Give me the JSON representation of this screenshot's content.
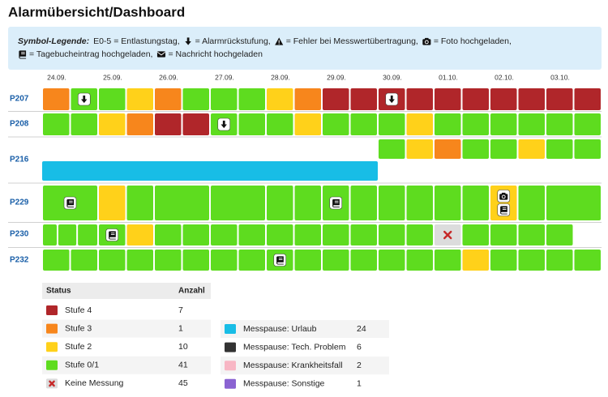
{
  "header": {
    "title": "Alarmübersicht/Dashboard"
  },
  "symbol_legend": {
    "heading": "Symbol-Legende:",
    "items": [
      {
        "text": "E0-5 = Entlastungstag,"
      },
      {
        "text": "= Alarmrückstufung,"
      },
      {
        "text": "= Fehler bei Messwertübertragung,"
      },
      {
        "text": "= Foto hochgeladen,"
      },
      {
        "text": "= Tagebucheintrag hochgeladen,"
      },
      {
        "text": "= Nachricht hochgeladen"
      }
    ]
  },
  "dates": [
    "24.09.",
    "25.09.",
    "26.09.",
    "27.09.",
    "28.09.",
    "29.09.",
    "30.09.",
    "01.10.",
    "02.10.",
    "03.10."
  ],
  "rows": [
    {
      "label": "P207",
      "lanes": [
        [
          "Stufe 3",
          {
            "status": "Stufe 0/1",
            "icons": [
              "Alarmrückstufung"
            ]
          },
          "Stufe 0/1",
          "Stufe 2",
          "Stufe 3",
          "Stufe 0/1",
          "Stufe 0/1",
          "Stufe 0/1",
          "Stufe 2",
          "Stufe 3",
          "Stufe 4",
          "Stufe 4",
          {
            "status": "Stufe 4",
            "icons": [
              "Alarmrückstufung"
            ]
          },
          "Stufe 4",
          "Stufe 4",
          "Stufe 4",
          "Stufe 4",
          "Stufe 4",
          "Stufe 4",
          "Stufe 4"
        ]
      ]
    },
    {
      "label": "P208",
      "lanes": [
        [
          "Stufe 0/1",
          "Stufe 0/1",
          "Stufe 2",
          "Stufe 3",
          "Stufe 4",
          "Stufe 4",
          {
            "status": "Stufe 0/1",
            "icons": [
              "Alarmrückstufung"
            ]
          },
          "Stufe 0/1",
          "Stufe 0/1",
          "Stufe 2",
          "Stufe 0/1",
          "Stufe 0/1",
          "Stufe 0/1",
          "Stufe 2",
          "Stufe 0/1",
          "Stufe 0/1",
          "Stufe 0/1",
          "Stufe 0/1",
          "Stufe 0/1",
          "Stufe 0/1"
        ]
      ]
    },
    {
      "label": "P216",
      "lanes": [
        [
          null,
          null,
          null,
          null,
          null,
          null,
          null,
          null,
          null,
          null,
          null,
          null,
          "Stufe 0/1",
          "Stufe 2",
          "Stufe 3",
          "Stufe 0/1",
          "Stufe 0/1",
          "Stufe 2",
          "Stufe 0/1",
          "Stufe 0/1"
        ],
        [
          "Messpause: Urlaub"
        ]
      ]
    },
    {
      "label": "P229",
      "lanes": [
        [
          {
            "status": "Stufe 0/1",
            "icons": [
              "Tagebucheintrag hochgeladen"
            ]
          },
          "Stufe 2",
          "Stufe 0/1",
          "Stufe 0/1",
          "Stufe 0/1",
          "Stufe 0/1",
          "Stufe 0/1",
          {
            "status": "Stufe 0/1",
            "icons": [
              "Tagebucheintrag hochgeladen"
            ]
          },
          "Stufe 0/1",
          "Stufe 0/1",
          "Stufe 0/1",
          "Stufe 0/1",
          "Stufe 0/1",
          {
            "status": "Stufe 2",
            "icons": [
              "Foto hochgeladen",
              "Tagebucheintrag hochgeladen"
            ]
          },
          "Stufe 0/1",
          "Stufe 0/1"
        ]
      ]
    },
    {
      "label": "P230",
      "lanes": [
        [
          "Stufe 0/1",
          "Stufe 0/1",
          "Stufe 0/1",
          {
            "status": "Stufe 0/1",
            "icons": [
              "Tagebucheintrag hochgeladen"
            ]
          },
          "Stufe 2",
          "Stufe 0/1",
          "Stufe 0/1",
          "Stufe 0/1",
          "Stufe 0/1",
          "Stufe 0/1",
          "Stufe 0/1",
          "Stufe 0/1",
          "Stufe 0/1",
          "Stufe 0/1",
          "Stufe 0/1",
          "Keine Messung",
          "Stufe 0/1",
          "Stufe 0/1",
          "Stufe 0/1",
          "Stufe 0/1"
        ]
      ]
    },
    {
      "label": "P232",
      "lanes": [
        [
          "Stufe 0/1",
          "Stufe 0/1",
          "Stufe 0/1",
          "Stufe 0/1",
          "Stufe 0/1",
          "Stufe 0/1",
          "Stufe 0/1",
          "Stufe 0/1",
          {
            "status": "Stufe 0/1",
            "icons": [
              "Tagebucheintrag hochgeladen"
            ]
          },
          "Stufe 0/1",
          "Stufe 0/1",
          "Stufe 0/1",
          "Stufe 0/1",
          "Stufe 0/1",
          "Stufe 0/1",
          "Stufe 2",
          "Stufe 0/1",
          "Stufe 0/1",
          "Stufe 0/1",
          "Stufe 0/1"
        ]
      ]
    }
  ],
  "status_table": {
    "columns": [
      "Status",
      "Anzahl"
    ],
    "entries": [
      {
        "label": "Stufe 4",
        "count": 7,
        "color": "#b0262a"
      },
      {
        "label": "Stufe 3",
        "count": 1,
        "color": "#f7861c"
      },
      {
        "label": "Stufe 2",
        "count": 10,
        "color": "#ffd11a"
      },
      {
        "label": "Stufe 0/1",
        "count": 41,
        "color": "#5edc1f"
      },
      {
        "label": "Keine Messung",
        "count": 45,
        "color": "#dcdcdc",
        "marker": "x",
        "marker_color": "#c62828"
      }
    ]
  },
  "pause_table": {
    "entries": [
      {
        "label": "Messpause: Urlaub",
        "count": 24,
        "color": "#18bde6"
      },
      {
        "label": "Messpause: Tech. Problem",
        "count": 6,
        "color": "#333333"
      },
      {
        "label": "Messpause: Krankheitsfall",
        "count": 2,
        "color": "#f8b6c4"
      },
      {
        "label": "Messpause: Sonstige",
        "count": 1,
        "color": "#8a63d2"
      }
    ]
  }
}
